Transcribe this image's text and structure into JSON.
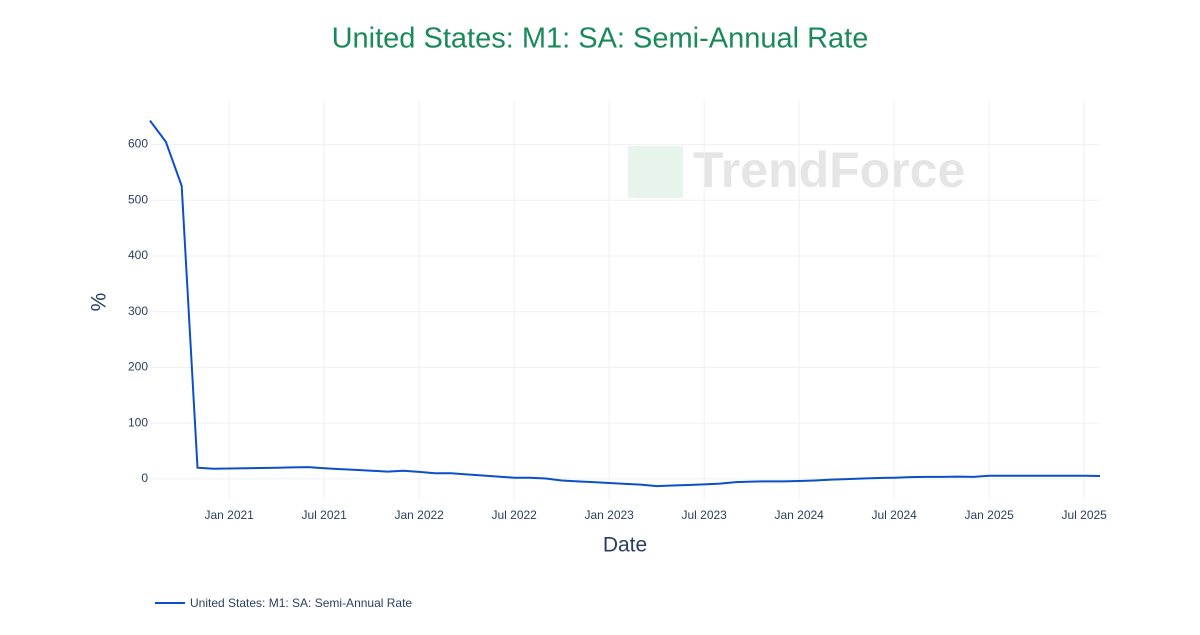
{
  "chart_data": {
    "type": "line",
    "title": "United States: M1: SA: Semi-Annual Rate",
    "xlabel": "Date",
    "ylabel": "%",
    "watermark": "TrendForce",
    "x": [
      "2020-08",
      "2020-09",
      "2020-10",
      "2020-11",
      "2020-12",
      "2021-01",
      "2021-02",
      "2021-03",
      "2021-04",
      "2021-05",
      "2021-06",
      "2021-07",
      "2021-08",
      "2021-09",
      "2021-10",
      "2021-11",
      "2021-12",
      "2022-01",
      "2022-02",
      "2022-03",
      "2022-04",
      "2022-05",
      "2022-06",
      "2022-07",
      "2022-08",
      "2022-09",
      "2022-10",
      "2022-11",
      "2022-12",
      "2023-01",
      "2023-02",
      "2023-03",
      "2023-04",
      "2023-05",
      "2023-06",
      "2023-07",
      "2023-08",
      "2023-09",
      "2023-10",
      "2023-11",
      "2023-12",
      "2024-01",
      "2024-02",
      "2024-03",
      "2024-04",
      "2024-05",
      "2024-06",
      "2024-07",
      "2024-08",
      "2024-09",
      "2024-10",
      "2024-11",
      "2024-12",
      "2025-01",
      "2025-02",
      "2025-03",
      "2025-04",
      "2025-05",
      "2025-06",
      "2025-07",
      "2025-08"
    ],
    "series": [
      {
        "name": "United States: M1: SA: Semi-Annual Rate",
        "color": "#0b4fc9",
        "values": [
          643,
          605,
          526,
          20,
          18,
          18.5,
          19,
          19.5,
          20,
          20.5,
          21,
          19,
          17.5,
          16,
          14.5,
          13,
          14.5,
          12.5,
          10,
          10,
          8,
          6,
          4,
          2,
          2,
          0.5,
          -3,
          -4.5,
          -6,
          -7.5,
          -9,
          -10.5,
          -13,
          -12,
          -11,
          -10,
          -8.5,
          -6,
          -5,
          -4.5,
          -4.5,
          -4,
          -3,
          -1.5,
          -0.5,
          0.5,
          1.5,
          2,
          3,
          3.5,
          3.5,
          4,
          3.5,
          5.5,
          5.5,
          5.5,
          5.5,
          5.5,
          5.5,
          5.5,
          5
        ]
      }
    ],
    "xlim": [
      "2020-08",
      "2025-08"
    ],
    "xticks": [
      {
        "value": "2021-01",
        "label": "Jan 2021"
      },
      {
        "value": "2021-07",
        "label": "Jul 2021"
      },
      {
        "value": "2022-01",
        "label": "Jan 2022"
      },
      {
        "value": "2022-07",
        "label": "Jul 2022"
      },
      {
        "value": "2023-01",
        "label": "Jan 2023"
      },
      {
        "value": "2023-07",
        "label": "Jul 2023"
      },
      {
        "value": "2024-01",
        "label": "Jan 2024"
      },
      {
        "value": "2024-07",
        "label": "Jul 2024"
      },
      {
        "value": "2025-01",
        "label": "Jan 2025"
      },
      {
        "value": "2025-07",
        "label": "Jul 2025"
      }
    ],
    "ylim": [
      -38,
      680
    ],
    "yticks": [
      0,
      100,
      200,
      300,
      400,
      500,
      600
    ],
    "grid": true
  }
}
